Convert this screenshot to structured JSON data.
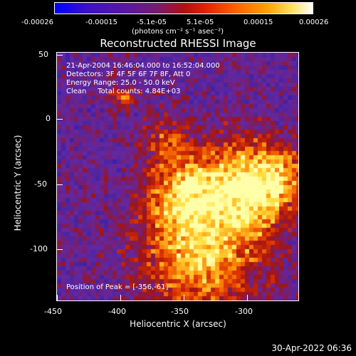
{
  "colorbar": {
    "ticks": [
      "-0.00026",
      "-0.00015",
      "-5.1e-05",
      "5.1e-05",
      "0.00015",
      "0.00026"
    ],
    "unit": "(photons cm⁻² s⁻¹ asec⁻²)"
  },
  "plot": {
    "title": "Reconstructed RHESSI Image",
    "info_lines": [
      "21-Apr-2004 16:46:04.000 to 16:52:04.000",
      "Detectors: 3F 4F 5F 6F 7F 8F, Att 0",
      "Energy Range: 25.0 - 50.0 keV",
      "Clean     Total counts: 4.84E+03"
    ],
    "peak_label": "Position of Peak = [-356,-61]",
    "x_axis": {
      "label": "Heliocentric X (arcsec)",
      "ticks": [
        "-450",
        "-400",
        "-350",
        "-300"
      ]
    },
    "y_axis": {
      "label": "Heliocentric Y (arcsec)",
      "ticks": [
        "50",
        "0",
        "-50",
        "-100"
      ]
    }
  },
  "footer": {
    "timestamp": "30-Apr-2022 06:36"
  },
  "colors": {
    "background": "#000000",
    "low": "#1515ff",
    "mid_low": "#6a2aa8",
    "mid": "#b0201a",
    "high": "#ff9a10",
    "peak": "#ffff80"
  }
}
